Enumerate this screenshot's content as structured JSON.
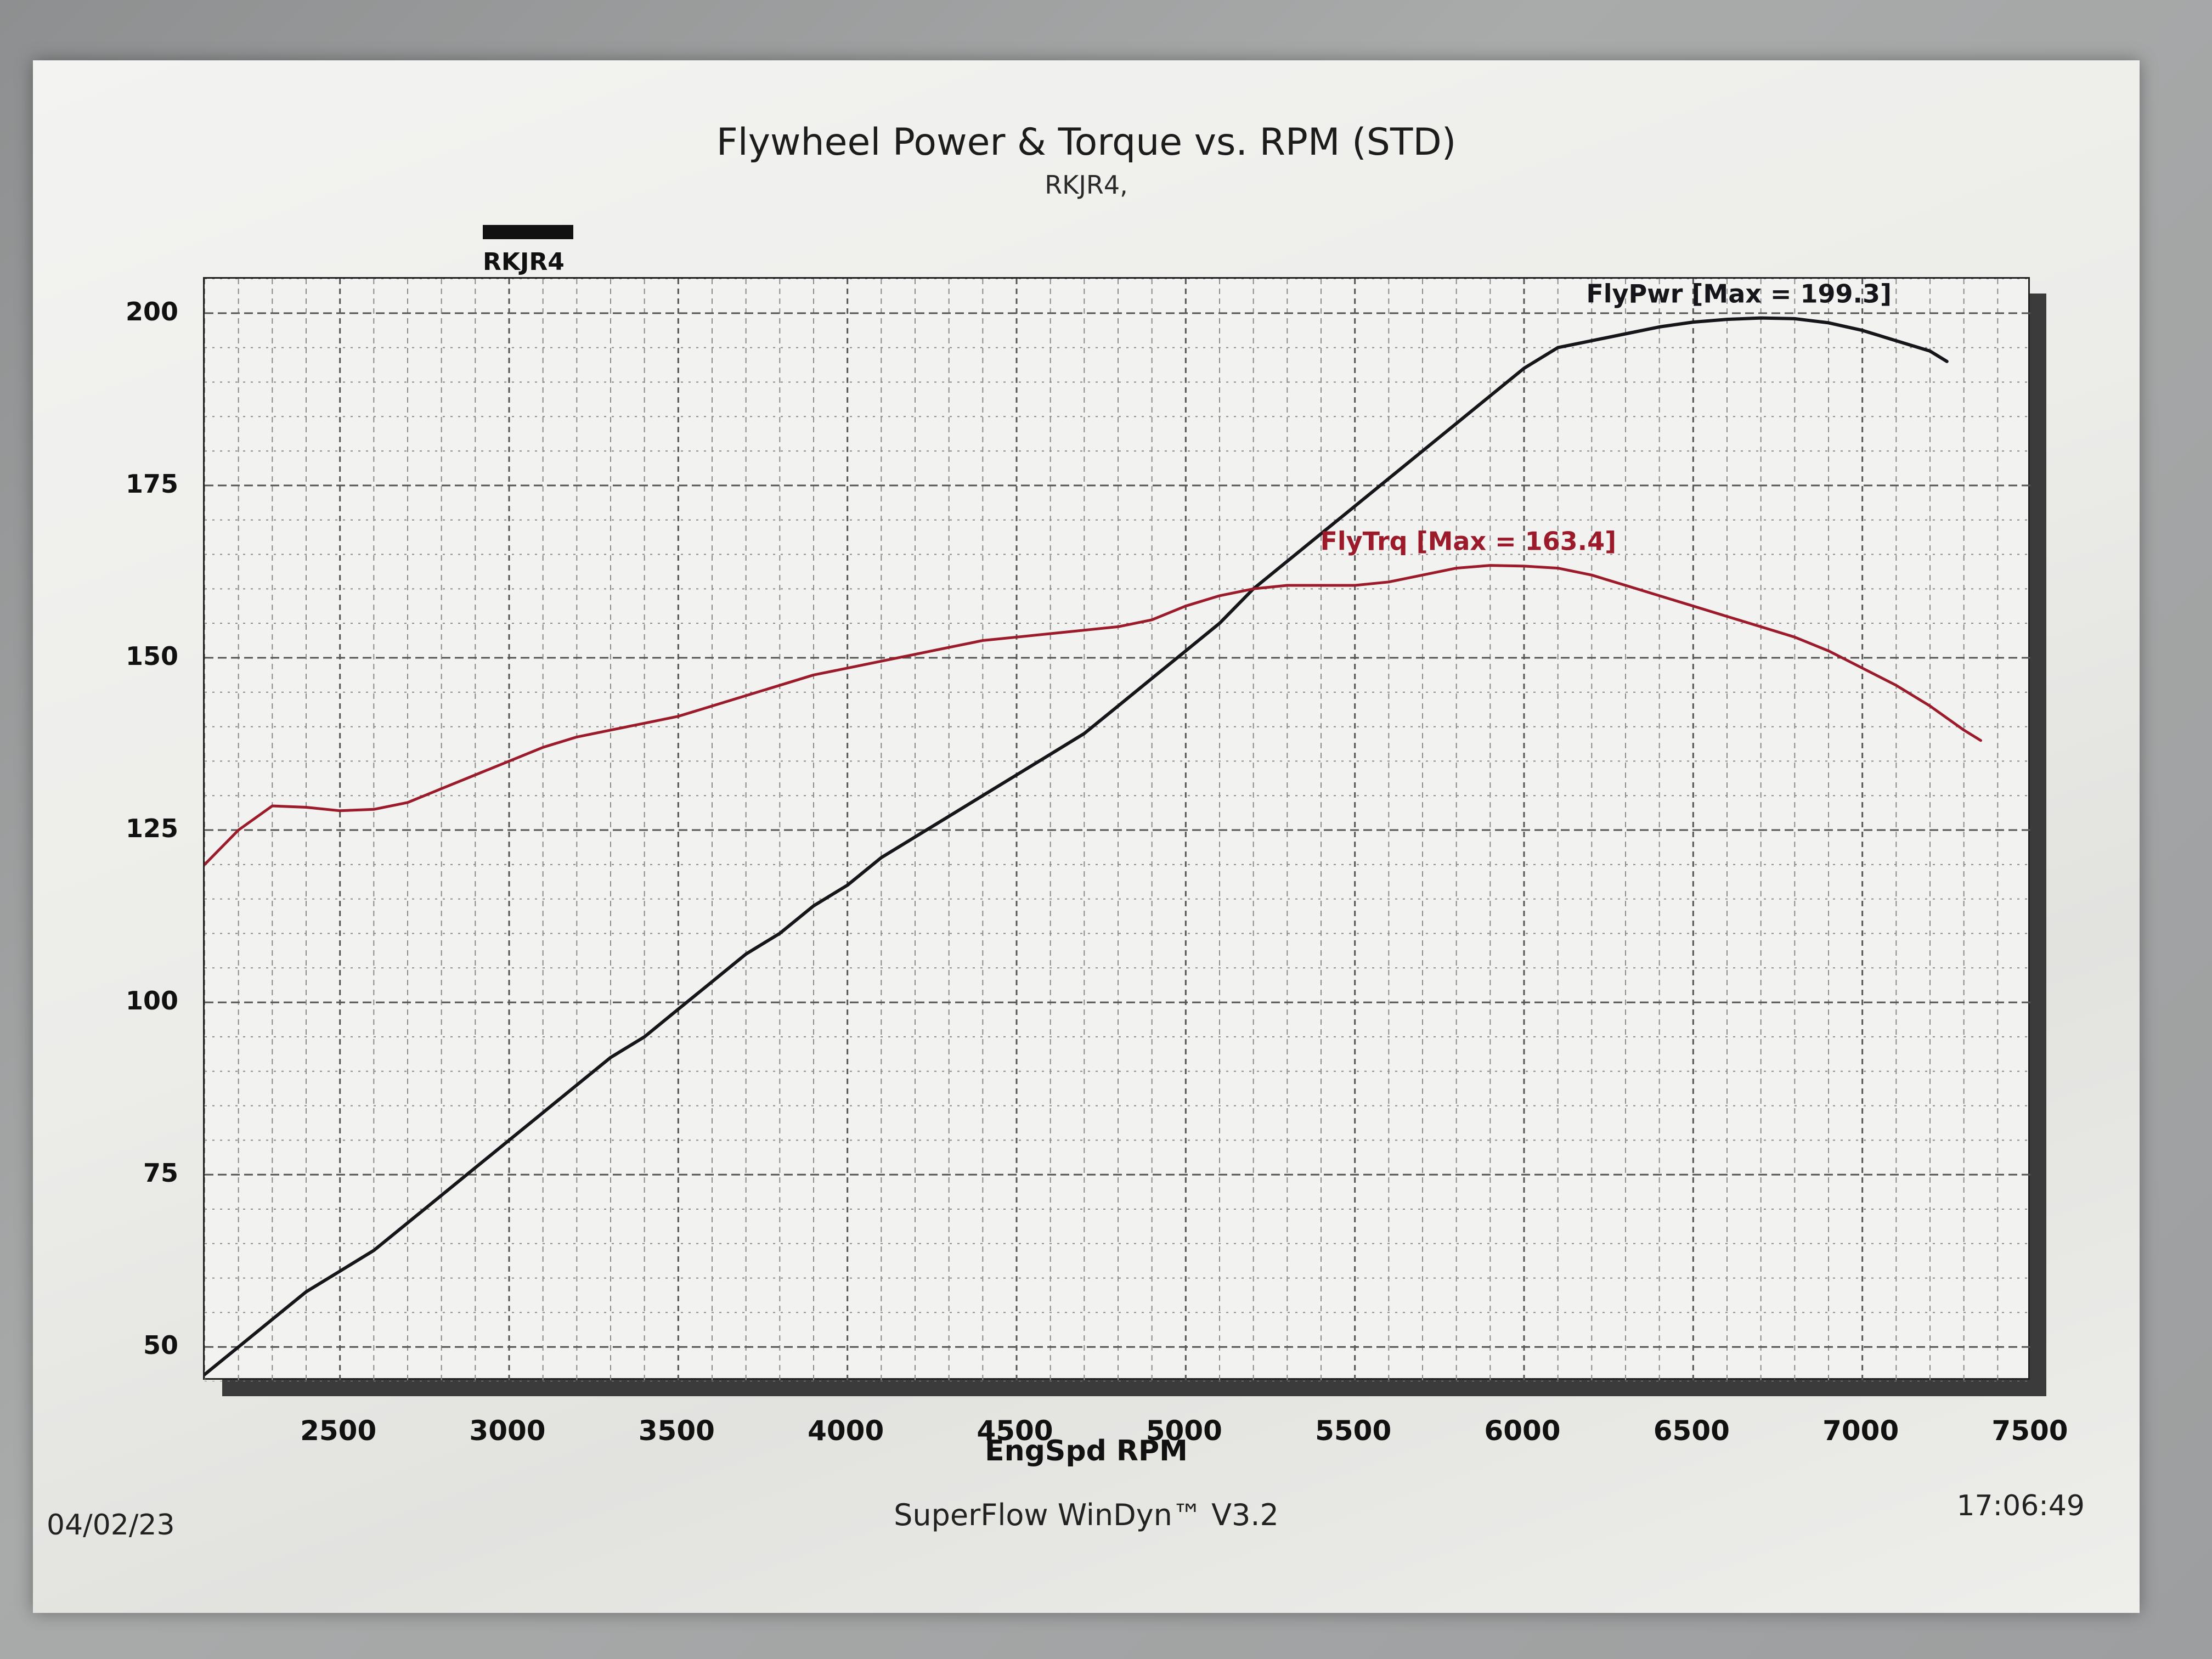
{
  "header": {
    "title": "Flywheel Power & Torque vs. RPM (STD)",
    "subtitle": "RKJR4,"
  },
  "legend": {
    "label": "RKJR4"
  },
  "footer": {
    "date": "04/02/23",
    "software": "SuperFlow WinDyn™ V3.2",
    "time": "17:06:49"
  },
  "colors": {
    "power": "#15151a",
    "torque": "#9c1b2b"
  },
  "chart_data": {
    "type": "line",
    "title": "Flywheel Power & Torque vs. RPM (STD)",
    "subtitle": "RKJR4,",
    "xlabel": "EngSpd RPM",
    "ylabel": "",
    "xlim": [
      2100,
      7500
    ],
    "ylim": [
      45,
      205
    ],
    "x_ticks": [
      2500,
      3000,
      3500,
      4000,
      4500,
      5000,
      5500,
      6000,
      6500,
      7000,
      7500
    ],
    "y_ticks": [
      50,
      75,
      100,
      125,
      150,
      175,
      200
    ],
    "grid": true,
    "legend": "top-left",
    "series": [
      {
        "name": "FlyPwr",
        "annotation": "FlyPwr [Max = 199.3]",
        "x": [
          2100,
          2200,
          2300,
          2400,
          2500,
          2600,
          2700,
          2800,
          2900,
          3000,
          3100,
          3200,
          3300,
          3400,
          3500,
          3600,
          3700,
          3800,
          3900,
          4000,
          4100,
          4200,
          4300,
          4400,
          4500,
          4600,
          4700,
          4800,
          4900,
          5000,
          5100,
          5200,
          5300,
          5400,
          5500,
          5600,
          5700,
          5800,
          5900,
          6000,
          6100,
          6200,
          6300,
          6400,
          6500,
          6600,
          6700,
          6800,
          6900,
          7000,
          7100,
          7200,
          7250
        ],
        "y": [
          46,
          50,
          54,
          58,
          61,
          64,
          68,
          72,
          76,
          80,
          84,
          88,
          92,
          95,
          99,
          103,
          107,
          110,
          114,
          117,
          121,
          124,
          127,
          130,
          133,
          136,
          139,
          143,
          147,
          151,
          155,
          160,
          164,
          168,
          172,
          176,
          180,
          184,
          188,
          192,
          195,
          196,
          197,
          198,
          198.7,
          199.1,
          199.3,
          199.2,
          198.6,
          197.5,
          196,
          194.5,
          193
        ]
      },
      {
        "name": "FlyTrq",
        "annotation": "FlyTrq [Max = 163.4]",
        "x": [
          2100,
          2200,
          2300,
          2400,
          2500,
          2600,
          2700,
          2800,
          2900,
          3000,
          3100,
          3200,
          3300,
          3400,
          3500,
          3600,
          3700,
          3800,
          3900,
          4000,
          4100,
          4200,
          4300,
          4400,
          4500,
          4600,
          4700,
          4800,
          4900,
          5000,
          5100,
          5200,
          5300,
          5400,
          5500,
          5600,
          5700,
          5800,
          5900,
          6000,
          6100,
          6200,
          6300,
          6400,
          6500,
          6600,
          6700,
          6800,
          6900,
          7000,
          7100,
          7200,
          7300,
          7350
        ],
        "y": [
          120,
          125,
          128.5,
          128.3,
          127.8,
          128,
          129,
          131,
          133,
          135,
          137,
          138.5,
          139.5,
          140.5,
          141.5,
          143,
          144.5,
          146,
          147.5,
          148.5,
          149.5,
          150.5,
          151.5,
          152.5,
          153,
          153.5,
          154,
          154.5,
          155.5,
          157.5,
          159,
          160,
          160.5,
          160.5,
          160.5,
          161,
          162,
          163,
          163.4,
          163.3,
          163,
          162,
          160.5,
          159,
          157.5,
          156,
          154.5,
          153,
          151,
          148.5,
          146,
          143,
          139.5,
          138
        ]
      }
    ]
  }
}
